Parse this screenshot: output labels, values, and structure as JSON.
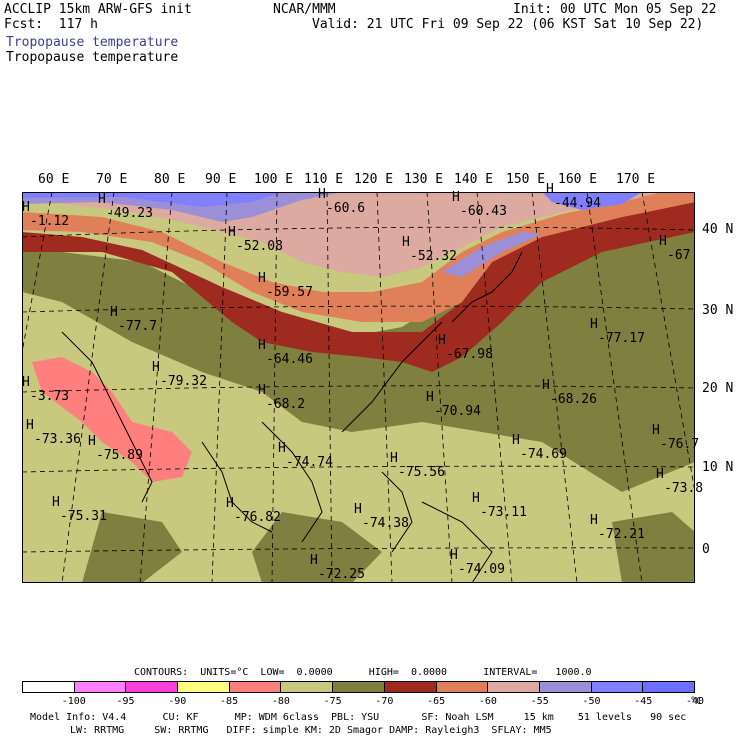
{
  "header": {
    "model_title": "ACCLIP 15km ARW-GFS init",
    "fcst": "Fcst:  117 h",
    "center": "NCAR/MMM",
    "init": "Init: 00 UTC Mon 05 Sep 22",
    "valid": "Valid: 21 UTC Fri 09 Sep 22 (06 KST Sat 10 Sep 22)",
    "field_1": "Tropopause temperature",
    "field_1_color": "#3c3c96",
    "field_2": "Tropopause temperature"
  },
  "axes": {
    "lon_labels": [
      "60 E",
      "70 E",
      "80 E",
      "90 E",
      "100 E",
      "110 E",
      "120 E",
      "130 E",
      "140 E",
      "150 E",
      "160 E",
      "170 E"
    ],
    "lat_labels": [
      "40 N",
      "30 N",
      "20 N",
      "10 N",
      "0"
    ]
  },
  "map": {
    "lows": [],
    "highs": [
      {
        "text": "-49.23"
      },
      {
        "text": "-52.08"
      },
      {
        "text": "-59.57"
      },
      {
        "text": "-60.6"
      },
      {
        "text": "-60.43"
      },
      {
        "text": "-44.94"
      },
      {
        "text": "-52.32"
      },
      {
        "text": "-67"
      },
      {
        "text": "-77.7"
      },
      {
        "text": "-64.46"
      },
      {
        "text": "-67.98"
      },
      {
        "text": "-77.17"
      },
      {
        "text": "-79.32"
      },
      {
        "text": "-68.2"
      },
      {
        "text": "-70.94"
      },
      {
        "text": "-68.26"
      },
      {
        "text": "-73.36"
      },
      {
        "text": "-75.89"
      },
      {
        "text": "-74.74"
      },
      {
        "text": "-75.56"
      },
      {
        "text": "-74.69"
      },
      {
        "text": "-76.7"
      },
      {
        "text": "-73.8"
      },
      {
        "text": "-75.31"
      },
      {
        "text": "-76.82"
      },
      {
        "text": "-74.38"
      },
      {
        "text": "-73.11"
      },
      {
        "text": "-72.21"
      },
      {
        "text": "-74.09"
      },
      {
        "text": "-72.25"
      },
      {
        "text": "-1.12"
      },
      {
        "text": "-3.73"
      }
    ],
    "h_marker": "H",
    "l_marker": "L"
  },
  "contours": {
    "line": "CONTOURS:  UNITS=°C  LOW=  0.0000      HIGH=  0.0000      INTERVAL=   1000.0"
  },
  "colorbar": {
    "colors": [
      "#ffffff",
      "#ff7fff",
      "#ff3fd9",
      "#ffff7f",
      "#ff7f7f",
      "#c8c87f",
      "#7f7f3f",
      "#9e2a20",
      "#e0805a",
      "#dcaaa0",
      "#9b8fd8",
      "#8080ff",
      "#6e6eff"
    ],
    "labels": [
      "-100",
      "-95",
      "-90",
      "-85",
      "-80",
      "-75",
      "-70",
      "-65",
      "-60",
      "-55",
      "-50",
      "-45",
      "-40"
    ],
    "unit": "°C"
  },
  "footer": {
    "line1": "Model Info: V4.4      CU: KF      MP: WDM 6class  PBL: YSU       SF: Noah LSM     15 km    51 levels   90 sec",
    "line2": "LW: RRTMG     SW: RRTMG   DIFF: simple KM: 2D Smagor DAMP: Rayleigh3  SFLAY: MM5"
  }
}
